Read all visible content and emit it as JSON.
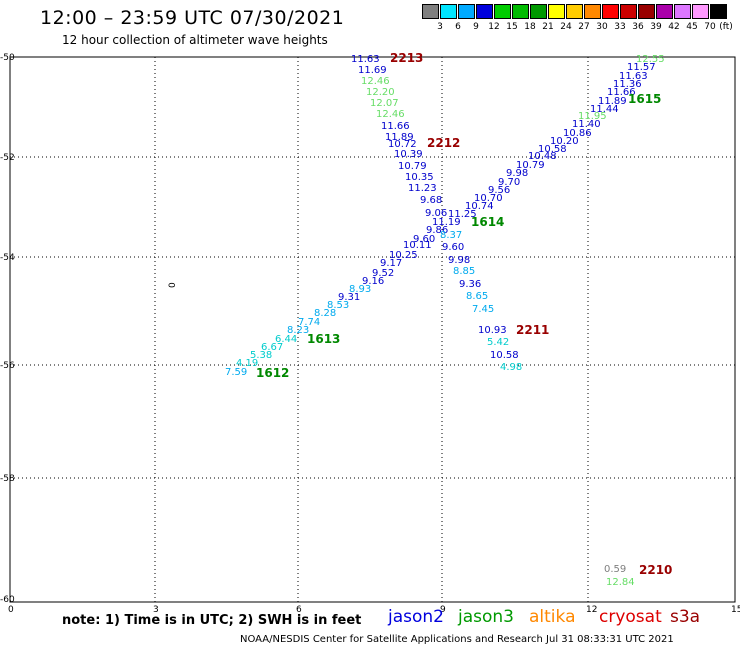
{
  "header": {
    "title": "12:00 – 23:59 UTC 07/30/2021",
    "subtitle": "12 hour collection of altimeter wave heights"
  },
  "scale": {
    "labels": [
      "3",
      "6",
      "9",
      "12",
      "15",
      "18",
      "21",
      "24",
      "27",
      "30",
      "33",
      "36",
      "39",
      "42",
      "45",
      "70"
    ],
    "unit": "(ft)",
    "colors": [
      "#7f7f7f",
      "#00e5ff",
      "#00aaff",
      "#0000dd",
      "#00cc00",
      "#00bb00",
      "#009900",
      "#ffff00",
      "#ffcc00",
      "#ff8800",
      "#ff0000",
      "#cc0000",
      "#990000",
      "#aa00aa",
      "#dd77ff",
      "#ff99ff",
      "#000000"
    ]
  },
  "axes": {
    "lat_labels": [
      "-50",
      "-52",
      "-54",
      "-56",
      "-58",
      "-60"
    ],
    "lon_labels": [
      "0",
      "3",
      "6",
      "9",
      "12",
      "15"
    ]
  },
  "tracks": [
    {
      "points": [
        {
          "t": "11.63",
          "c": "#0000cc"
        },
        {
          "t": "11.69",
          "c": "#0000cc"
        },
        {
          "t": "12.46",
          "c": "#66dd66"
        },
        {
          "t": "12.20",
          "c": "#66dd66"
        },
        {
          "t": "12.07",
          "c": "#66dd66"
        },
        {
          "t": "12.46",
          "c": "#66dd66"
        },
        {
          "t": "11.66",
          "c": "#0000cc"
        },
        {
          "t": "11.89",
          "c": "#0000cc"
        },
        {
          "t": "10.72",
          "c": "#0000cc"
        },
        {
          "t": "10.39",
          "c": "#0000cc"
        },
        {
          "t": "10.79",
          "c": "#0000cc"
        },
        {
          "t": "10.35",
          "c": "#0000cc"
        },
        {
          "t": "11.23",
          "c": "#0000cc"
        },
        {
          "t": "9.68",
          "c": "#0000cc"
        },
        {
          "t": "9.06",
          "c": "#0000cc"
        },
        {
          "t": "11.25",
          "c": "#0000cc"
        },
        {
          "t": "11.19",
          "c": "#0000cc"
        },
        {
          "t": "9.86",
          "c": "#0000cc"
        },
        {
          "t": "8.37",
          "c": "#00aaee"
        },
        {
          "t": "9.60",
          "c": "#0000cc"
        },
        {
          "t": "9.60",
          "c": "#0000cc"
        },
        {
          "t": "9.98",
          "c": "#0000cc"
        },
        {
          "t": "8.85",
          "c": "#00aaee"
        },
        {
          "t": "9.36",
          "c": "#0000cc"
        },
        {
          "t": "8.65",
          "c": "#00aaee"
        },
        {
          "t": "7.45",
          "c": "#00aaee"
        },
        {
          "t": "10.93",
          "c": "#0000cc"
        },
        {
          "t": "5.42",
          "c": "#00cccc"
        },
        {
          "t": "10.58",
          "c": "#0000cc"
        },
        {
          "t": "4.98",
          "c": "#00cccc"
        }
      ]
    },
    {
      "points": [
        {
          "t": "12.55",
          "c": "#66dd66"
        },
        {
          "t": "11.57",
          "c": "#0000cc"
        },
        {
          "t": "11.63",
          "c": "#0000cc"
        },
        {
          "t": "11.36",
          "c": "#0000cc"
        },
        {
          "t": "11.66",
          "c": "#0000cc"
        },
        {
          "t": "11.89",
          "c": "#0000cc"
        },
        {
          "t": "11.44",
          "c": "#0000cc"
        },
        {
          "t": "11.95",
          "c": "#66dd66"
        },
        {
          "t": "11.40",
          "c": "#0000cc"
        },
        {
          "t": "10.86",
          "c": "#0000cc"
        },
        {
          "t": "10.20",
          "c": "#0000cc"
        },
        {
          "t": "10.58",
          "c": "#0000cc"
        },
        {
          "t": "10.48",
          "c": "#0000cc"
        },
        {
          "t": "10.79",
          "c": "#0000cc"
        },
        {
          "t": "9.98",
          "c": "#0000cc"
        },
        {
          "t": "9.70",
          "c": "#0000cc"
        },
        {
          "t": "9.56",
          "c": "#0000cc"
        },
        {
          "t": "10.70",
          "c": "#0000cc"
        },
        {
          "t": "10.74",
          "c": "#0000cc"
        },
        {
          "t": "10.11",
          "c": "#0000cc"
        },
        {
          "t": "10.25",
          "c": "#0000cc"
        },
        {
          "t": "9.17",
          "c": "#0000cc"
        },
        {
          "t": "9.52",
          "c": "#0000cc"
        },
        {
          "t": "9.16",
          "c": "#0000cc"
        },
        {
          "t": "8.93",
          "c": "#00aaee"
        },
        {
          "t": "9.31",
          "c": "#0000cc"
        },
        {
          "t": "8.53",
          "c": "#00aaee"
        },
        {
          "t": "8.28",
          "c": "#00aaee"
        },
        {
          "t": "7.74",
          "c": "#00aaee"
        },
        {
          "t": "8.23",
          "c": "#00aaee"
        },
        {
          "t": "6.44",
          "c": "#00cccc"
        },
        {
          "t": "6.67",
          "c": "#00cccc"
        },
        {
          "t": "5.38",
          "c": "#00cccc"
        },
        {
          "t": "4.19",
          "c": "#00cccc"
        },
        {
          "t": "7.59",
          "c": "#00aaee"
        }
      ]
    },
    {
      "points": [
        {
          "t": "0.59",
          "c": "#7f7f7f"
        },
        {
          "t": "12.84",
          "c": "#66dd66"
        }
      ]
    }
  ],
  "time_labels": [
    {
      "t": "2213",
      "c": "#990000"
    },
    {
      "t": "2212",
      "c": "#990000"
    },
    {
      "t": "1614",
      "c": "#008800"
    },
    {
      "t": "1615",
      "c": "#008800"
    },
    {
      "t": "2211",
      "c": "#990000"
    },
    {
      "t": "1613",
      "c": "#008800"
    },
    {
      "t": "1612",
      "c": "#008800"
    },
    {
      "t": "2210",
      "c": "#990000"
    }
  ],
  "stray_label": "0",
  "footer": {
    "note": "note:  1) Time is in UTC;  2) SWH is in feet",
    "satellites": [
      {
        "name": "jason2",
        "color": "#0000dd"
      },
      {
        "name": "jason3",
        "color": "#009900"
      },
      {
        "name": "altika",
        "color": "#ff8800"
      },
      {
        "name": "cryosat",
        "color": "#dd0000"
      },
      {
        "name": "s3a",
        "color": "#990000"
      }
    ],
    "credit": "NOAA/NESDIS Center for Satellite Applications and Research     Jul 31 08:33:31 UTC 2021"
  }
}
